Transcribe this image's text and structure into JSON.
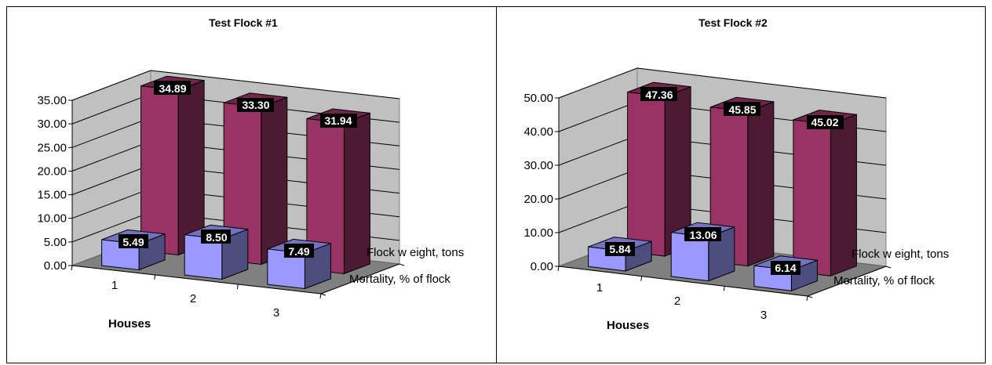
{
  "chart_data": [
    {
      "type": "bar",
      "title": "Test Flock #1",
      "xlabel": "Houses",
      "categories": [
        "1",
        "2",
        "3"
      ],
      "series": [
        {
          "name": "Mortality, % of flock",
          "values": [
            5.49,
            8.5,
            7.49
          ],
          "labels": [
            "5.49",
            "8.50",
            "7.49"
          ],
          "color": "#9999FF"
        },
        {
          "name": "Flock w eight, tons",
          "values": [
            34.89,
            33.3,
            31.94
          ],
          "labels": [
            "34.89",
            "33.30",
            "31.94"
          ],
          "color": "#993366"
        }
      ],
      "yticks": [
        "0.00",
        "5.00",
        "10.00",
        "15.00",
        "20.00",
        "25.00",
        "30.00",
        "35.00"
      ],
      "ylim": [
        0,
        35
      ]
    },
    {
      "type": "bar",
      "title": "Test Flock #2",
      "xlabel": "Houses",
      "categories": [
        "1",
        "2",
        "3"
      ],
      "series": [
        {
          "name": "Mortality, % of flock",
          "values": [
            5.84,
            13.06,
            6.14
          ],
          "labels": [
            "5.84",
            "13.06",
            "6.14"
          ],
          "color": "#9999FF"
        },
        {
          "name": "Flock w eight, tons",
          "values": [
            47.36,
            45.85,
            45.02
          ],
          "labels": [
            "47.36",
            "45.85",
            "45.02"
          ],
          "color": "#993366"
        }
      ],
      "yticks": [
        "0.00",
        "10.00",
        "20.00",
        "30.00",
        "40.00",
        "50.00"
      ],
      "ylim": [
        0,
        50
      ]
    }
  ]
}
